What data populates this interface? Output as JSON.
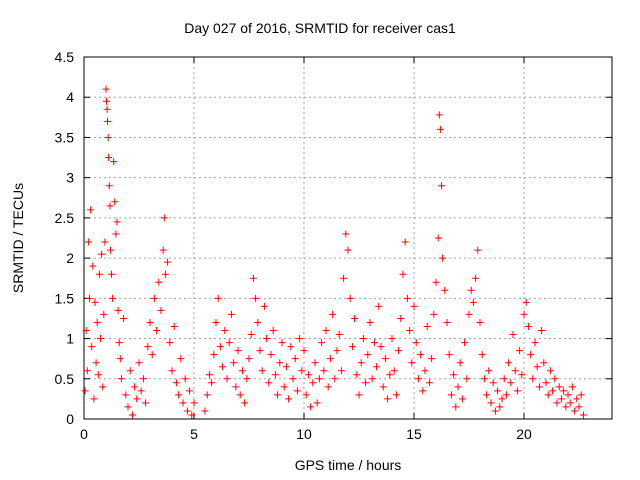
{
  "chart_data": {
    "type": "scatter",
    "title": "Day 027 of 2016, SRMTID for receiver cas1",
    "xlabel": "GPS time / hours",
    "ylabel": "SRMTID / TECUs",
    "xlim": [
      0,
      24
    ],
    "ylim": [
      0,
      4.5
    ],
    "x_ticks": [
      0,
      5,
      10,
      15,
      20
    ],
    "x_tick_labels": [
      "0",
      "5",
      "10",
      "15",
      "20"
    ],
    "y_ticks": [
      0,
      0.5,
      1,
      1.5,
      2,
      2.5,
      3,
      3.5,
      4,
      4.5
    ],
    "y_tick_labels": [
      "0",
      "0.5",
      "1",
      "1.5",
      "2",
      "2.5",
      "3",
      "3.5",
      "4",
      "4.5"
    ],
    "grid": true,
    "marker": "+",
    "color": "#ff0000",
    "series": [
      {
        "name": "SRMTID",
        "points": [
          [
            0.05,
            0.35
          ],
          [
            0.1,
            1.1
          ],
          [
            0.15,
            0.6
          ],
          [
            0.2,
            2.2
          ],
          [
            0.25,
            1.5
          ],
          [
            0.3,
            2.6
          ],
          [
            0.35,
            0.9
          ],
          [
            0.4,
            1.9
          ],
          [
            0.45,
            0.25
          ],
          [
            0.5,
            1.45
          ],
          [
            0.55,
            0.7
          ],
          [
            0.6,
            1.2
          ],
          [
            0.65,
            0.55
          ],
          [
            0.7,
            1.8
          ],
          [
            0.75,
            1.0
          ],
          [
            0.8,
            2.05
          ],
          [
            0.85,
            0.4
          ],
          [
            0.9,
            1.3
          ],
          [
            0.95,
            2.2
          ],
          [
            1.0,
            4.1
          ],
          [
            1.02,
            3.95
          ],
          [
            1.05,
            3.85
          ],
          [
            1.07,
            3.7
          ],
          [
            1.1,
            3.5
          ],
          [
            1.12,
            3.25
          ],
          [
            1.15,
            2.9
          ],
          [
            1.18,
            2.65
          ],
          [
            1.2,
            2.1
          ],
          [
            1.25,
            1.8
          ],
          [
            1.3,
            1.5
          ],
          [
            1.35,
            3.2
          ],
          [
            1.4,
            2.7
          ],
          [
            1.45,
            2.3
          ],
          [
            1.5,
            2.45
          ],
          [
            1.55,
            1.35
          ],
          [
            1.6,
            0.95
          ],
          [
            1.65,
            0.75
          ],
          [
            1.7,
            0.5
          ],
          [
            1.8,
            1.25
          ],
          [
            1.9,
            0.3
          ],
          [
            2.0,
            0.15
          ],
          [
            2.1,
            0.6
          ],
          [
            2.2,
            0.05
          ],
          [
            2.3,
            0.4
          ],
          [
            2.4,
            0.25
          ],
          [
            2.5,
            0.7
          ],
          [
            2.6,
            0.35
          ],
          [
            2.7,
            0.5
          ],
          [
            2.8,
            0.2
          ],
          [
            2.9,
            0.9
          ],
          [
            3.0,
            1.2
          ],
          [
            3.1,
            0.8
          ],
          [
            3.2,
            1.5
          ],
          [
            3.3,
            1.1
          ],
          [
            3.4,
            1.7
          ],
          [
            3.5,
            1.35
          ],
          [
            3.6,
            2.1
          ],
          [
            3.65,
            2.5
          ],
          [
            3.7,
            1.8
          ],
          [
            3.8,
            1.95
          ],
          [
            3.9,
            0.95
          ],
          [
            4.0,
            0.6
          ],
          [
            4.1,
            1.15
          ],
          [
            4.2,
            0.45
          ],
          [
            4.3,
            0.3
          ],
          [
            4.4,
            0.75
          ],
          [
            4.5,
            0.2
          ],
          [
            4.6,
            0.5
          ],
          [
            4.7,
            0.1
          ],
          [
            4.8,
            0.35
          ],
          [
            4.9,
            0.05
          ],
          [
            5.0,
            0.2
          ],
          [
            5.5,
            0.1
          ],
          [
            5.6,
            0.3
          ],
          [
            5.7,
            0.55
          ],
          [
            5.8,
            0.45
          ],
          [
            5.9,
            0.8
          ],
          [
            6.0,
            1.2
          ],
          [
            6.1,
            1.5
          ],
          [
            6.2,
            0.9
          ],
          [
            6.3,
            0.65
          ],
          [
            6.4,
            1.1
          ],
          [
            6.5,
            0.5
          ],
          [
            6.6,
            0.95
          ],
          [
            6.7,
            1.3
          ],
          [
            6.8,
            0.7
          ],
          [
            6.9,
            0.4
          ],
          [
            7.0,
            0.85
          ],
          [
            7.1,
            0.3
          ],
          [
            7.2,
            0.6
          ],
          [
            7.3,
            0.2
          ],
          [
            7.4,
            0.5
          ],
          [
            7.5,
            0.75
          ],
          [
            7.6,
            1.05
          ],
          [
            7.7,
            1.75
          ],
          [
            7.8,
            1.5
          ],
          [
            7.9,
            1.2
          ],
          [
            8.0,
            0.85
          ],
          [
            8.1,
            0.6
          ],
          [
            8.2,
            1.4
          ],
          [
            8.3,
            1.0
          ],
          [
            8.4,
            0.45
          ],
          [
            8.5,
            0.8
          ],
          [
            8.6,
            1.1
          ],
          [
            8.7,
            0.55
          ],
          [
            8.8,
            0.3
          ],
          [
            8.9,
            0.7
          ],
          [
            9.0,
            0.95
          ],
          [
            9.1,
            0.4
          ],
          [
            9.2,
            0.65
          ],
          [
            9.3,
            0.25
          ],
          [
            9.4,
            0.9
          ],
          [
            9.5,
            0.5
          ],
          [
            9.6,
            0.75
          ],
          [
            9.7,
            0.35
          ],
          [
            9.8,
            1.0
          ],
          [
            9.9,
            0.6
          ],
          [
            10.0,
            0.85
          ],
          [
            10.1,
            0.3
          ],
          [
            10.2,
            0.55
          ],
          [
            10.3,
            0.15
          ],
          [
            10.4,
            0.45
          ],
          [
            10.5,
            0.7
          ],
          [
            10.6,
            0.2
          ],
          [
            10.7,
            0.5
          ],
          [
            10.8,
            0.95
          ],
          [
            10.9,
            0.6
          ],
          [
            11.0,
            1.1
          ],
          [
            11.1,
            0.4
          ],
          [
            11.2,
            0.75
          ],
          [
            11.3,
            1.3
          ],
          [
            11.4,
            0.5
          ],
          [
            11.5,
            0.85
          ],
          [
            11.6,
            1.05
          ],
          [
            11.7,
            0.6
          ],
          [
            11.8,
            1.75
          ],
          [
            11.9,
            2.3
          ],
          [
            12.0,
            2.1
          ],
          [
            12.1,
            1.5
          ],
          [
            12.2,
            0.9
          ],
          [
            12.3,
            1.25
          ],
          [
            12.4,
            0.55
          ],
          [
            12.5,
            0.3
          ],
          [
            12.6,
            0.7
          ],
          [
            12.7,
            1.0
          ],
          [
            12.8,
            0.45
          ],
          [
            12.9,
            0.8
          ],
          [
            13.0,
            1.2
          ],
          [
            13.1,
            0.5
          ],
          [
            13.2,
            0.95
          ],
          [
            13.3,
            0.65
          ],
          [
            13.4,
            1.4
          ],
          [
            13.5,
            0.9
          ],
          [
            13.6,
            0.4
          ],
          [
            13.7,
            0.75
          ],
          [
            13.8,
            0.25
          ],
          [
            13.9,
            0.55
          ],
          [
            14.0,
            1.0
          ],
          [
            14.1,
            0.6
          ],
          [
            14.2,
            0.3
          ],
          [
            14.3,
            0.85
          ],
          [
            14.4,
            1.25
          ],
          [
            14.5,
            1.8
          ],
          [
            14.6,
            2.2
          ],
          [
            14.7,
            1.5
          ],
          [
            14.8,
            1.1
          ],
          [
            14.9,
            0.7
          ],
          [
            15.0,
            1.4
          ],
          [
            15.1,
            0.95
          ],
          [
            15.2,
            0.5
          ],
          [
            15.3,
            0.8
          ],
          [
            15.4,
            0.35
          ],
          [
            15.5,
            0.6
          ],
          [
            15.6,
            1.15
          ],
          [
            15.7,
            0.45
          ],
          [
            15.8,
            0.75
          ],
          [
            15.9,
            1.3
          ],
          [
            16.0,
            1.7
          ],
          [
            16.1,
            2.25
          ],
          [
            16.15,
            3.78
          ],
          [
            16.2,
            3.6
          ],
          [
            16.25,
            2.9
          ],
          [
            16.3,
            2.0
          ],
          [
            16.4,
            1.6
          ],
          [
            16.5,
            1.2
          ],
          [
            16.6,
            0.8
          ],
          [
            16.7,
            0.3
          ],
          [
            16.8,
            0.55
          ],
          [
            16.9,
            0.15
          ],
          [
            17.0,
            0.4
          ],
          [
            17.1,
            0.7
          ],
          [
            17.2,
            0.25
          ],
          [
            17.3,
            0.95
          ],
          [
            17.4,
            0.5
          ],
          [
            17.5,
            1.3
          ],
          [
            17.6,
            1.6
          ],
          [
            17.7,
            1.45
          ],
          [
            17.8,
            1.75
          ],
          [
            17.9,
            2.1
          ],
          [
            18.0,
            1.2
          ],
          [
            18.1,
            0.8
          ],
          [
            18.2,
            0.5
          ],
          [
            18.3,
            0.3
          ],
          [
            18.4,
            0.6
          ],
          [
            18.5,
            0.2
          ],
          [
            18.6,
            0.45
          ],
          [
            18.7,
            0.1
          ],
          [
            18.8,
            0.35
          ],
          [
            18.9,
            0.15
          ],
          [
            19.0,
            0.25
          ],
          [
            19.1,
            0.5
          ],
          [
            19.2,
            0.3
          ],
          [
            19.3,
            0.7
          ],
          [
            19.4,
            0.45
          ],
          [
            19.5,
            1.05
          ],
          [
            19.6,
            0.6
          ],
          [
            19.7,
            0.35
          ],
          [
            19.8,
            0.85
          ],
          [
            19.9,
            0.55
          ],
          [
            20.0,
            1.3
          ],
          [
            20.1,
            1.45
          ],
          [
            20.2,
            1.15
          ],
          [
            20.3,
            0.8
          ],
          [
            20.4,
            0.5
          ],
          [
            20.5,
            0.95
          ],
          [
            20.6,
            0.65
          ],
          [
            20.7,
            0.4
          ],
          [
            20.8,
            1.1
          ],
          [
            20.9,
            0.7
          ],
          [
            21.0,
            0.45
          ],
          [
            21.1,
            0.3
          ],
          [
            21.2,
            0.6
          ],
          [
            21.3,
            0.35
          ],
          [
            21.4,
            0.5
          ],
          [
            21.5,
            0.2
          ],
          [
            21.6,
            0.4
          ],
          [
            21.7,
            0.25
          ],
          [
            21.8,
            0.35
          ],
          [
            21.9,
            0.15
          ],
          [
            22.0,
            0.3
          ],
          [
            22.1,
            0.2
          ],
          [
            22.2,
            0.4
          ],
          [
            22.3,
            0.1
          ],
          [
            22.4,
            0.25
          ],
          [
            22.5,
            0.15
          ],
          [
            22.6,
            0.3
          ],
          [
            22.7,
            0.05
          ]
        ]
      }
    ]
  }
}
